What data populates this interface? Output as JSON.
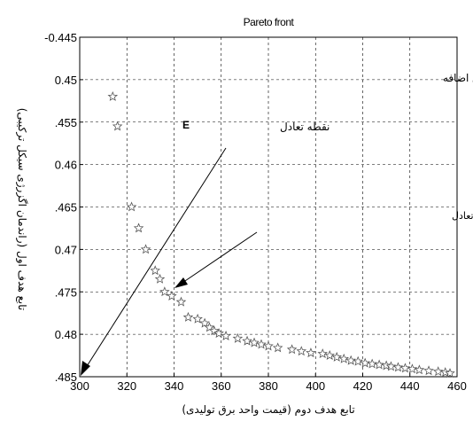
{
  "chart_data": {
    "type": "scatter",
    "title": "Pareto front",
    "xlabel": "تابع هدف دوم (قیمت واحد برق تولیدی)",
    "ylabel": "تابع هدف اول (راندمان اگزرژی سیکل ترکیبی)",
    "xlim": [
      300,
      460
    ],
    "ylim": [
      -0.485,
      -0.445
    ],
    "y_reversed": false,
    "grid": true,
    "x_ticks": [
      300,
      320,
      340,
      360,
      380,
      400,
      420,
      440,
      460
    ],
    "x_tick_labels": [
      "300",
      "320",
      "340",
      "360",
      "380",
      "400",
      "420",
      "440",
      "460"
    ],
    "y_ticks": [
      -0.445,
      -0.45,
      -0.455,
      -0.46,
      -0.465,
      -0.47,
      -0.475,
      -0.48,
      -0.485
    ],
    "y_tick_labels": [
      "-0.445",
      "0.45",
      ".455",
      "0.46",
      ".465",
      "0.47",
      ".475",
      "0.48",
      ".485"
    ],
    "series": [
      {
        "marker": "star",
        "x": [
          314,
          316,
          322,
          325,
          328,
          332,
          334,
          336,
          339,
          343,
          346,
          350,
          353,
          355,
          357,
          359,
          362,
          367,
          371,
          374,
          377,
          380,
          384,
          390,
          394,
          398,
          403,
          406,
          409,
          412,
          415,
          418,
          421,
          424,
          427,
          430,
          432,
          435,
          438,
          441,
          444,
          448,
          452,
          455,
          457
        ],
        "y": [
          -0.452,
          -0.4555,
          -0.465,
          -0.4675,
          -0.47,
          -0.4725,
          -0.4735,
          -0.475,
          -0.4755,
          -0.4762,
          -0.478,
          -0.4782,
          -0.4787,
          -0.4792,
          -0.4796,
          -0.4799,
          -0.4802,
          -0.4805,
          -0.4808,
          -0.481,
          -0.4812,
          -0.4814,
          -0.4816,
          -0.4818,
          -0.482,
          -0.4822,
          -0.4823,
          -0.4825,
          -0.4827,
          -0.4829,
          -0.4831,
          -0.4832,
          -0.4834,
          -0.4835,
          -0.4836,
          -0.4837,
          -0.4838,
          -0.4839,
          -0.484,
          -0.4841,
          -0.4842,
          -0.4843,
          -0.4844,
          -0.4845,
          -0.4846
        ]
      }
    ],
    "annotations": {
      "no_afterburner": "بدون احتراق اضافه",
      "equilibrium_point": "نقطه تعادل",
      "equilibrium_marker": "E",
      "nearest_point": "نزدیکترین نقطه جبهه پارتو به نقطه تعادل"
    }
  }
}
